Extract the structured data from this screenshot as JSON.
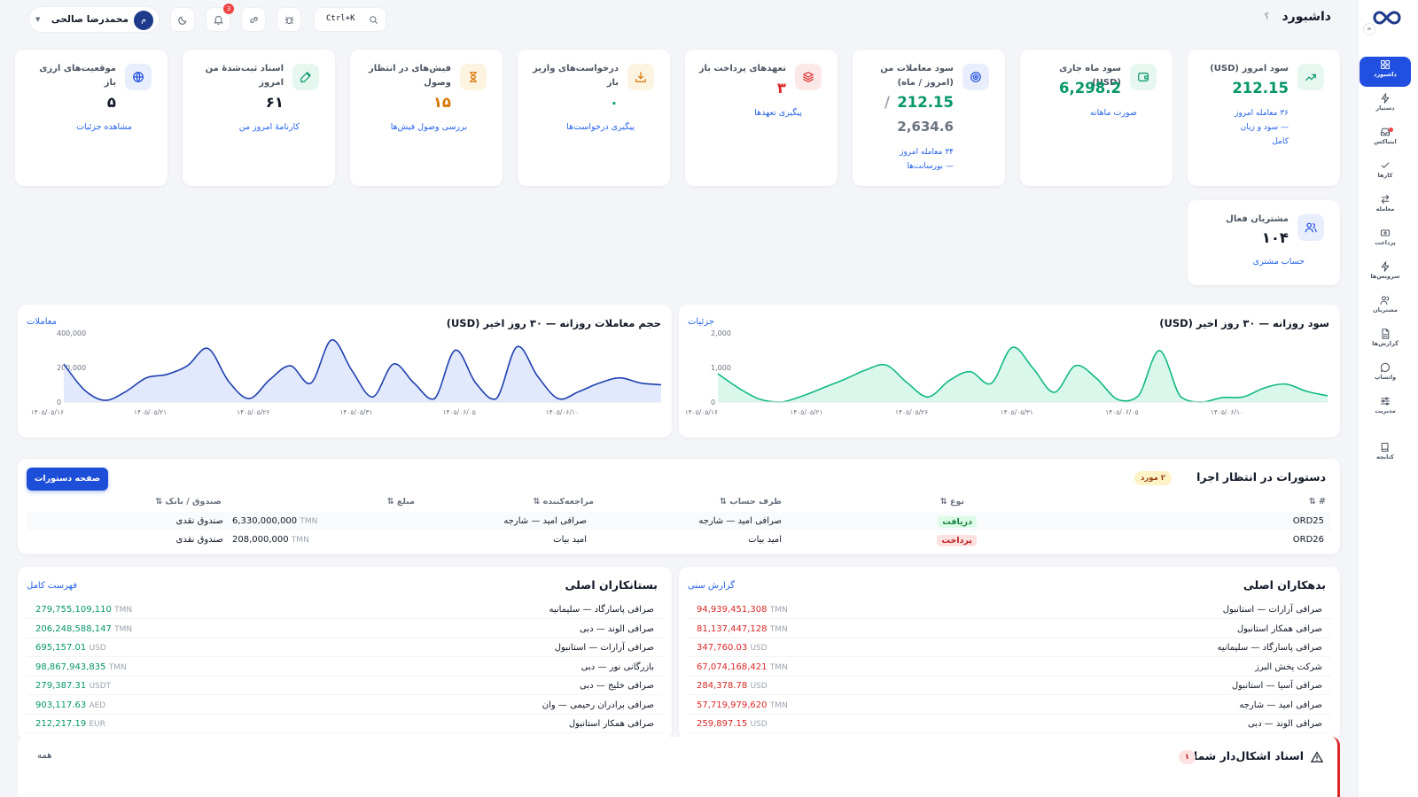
{
  "colors": {
    "accent": "#2150e0",
    "blue_line": "#1e40af",
    "blue_fill": "#dbe4fb",
    "green_line": "#10b981",
    "green_fill": "#d1f5e6",
    "danger": "#dc2626"
  },
  "sidebar": {
    "collapse_icon": "chevrons-icon",
    "items": [
      {
        "label": "داشبورد",
        "icon": "grid-icon",
        "active": true
      },
      {
        "label": "دستیار",
        "icon": "bolt-icon"
      },
      {
        "label": "اینباکس",
        "icon": "inbox-icon",
        "dot": true
      },
      {
        "label": "کارها",
        "icon": "check-icon"
      },
      {
        "label": "معامله",
        "icon": "swap-icon"
      },
      {
        "label": "پرداخت",
        "icon": "card-icon"
      },
      {
        "label": "سرویس‌ها",
        "icon": "flash-icon"
      },
      {
        "label": "مشتریان",
        "icon": "users-icon"
      },
      {
        "label": "گزارش‌ها",
        "icon": "file-icon"
      },
      {
        "label": "واتساپ",
        "icon": "chat-icon"
      },
      {
        "label": "مدیریت",
        "icon": "sliders-icon"
      },
      {
        "label": "کتابچه",
        "icon": "book-icon"
      }
    ]
  },
  "header": {
    "title": "داشبورد",
    "help": "؟",
    "search_shortcut": "Ctrl+K",
    "notifications": "3",
    "user_initial": "م",
    "user_name": "محمدرضا صالحی"
  },
  "kpis": [
    {
      "title": "سود امروز (USD)",
      "value": "212.15",
      "sub": "۳۶ معامله امروز — سود و زیان کامل",
      "icon": "trend-icon"
    },
    {
      "title": "سود ماه جاری (USD)",
      "value": "6,298.2",
      "link": "صورت ماهانه",
      "icon": "wallet-icon"
    },
    {
      "title": "سود معاملات من (امروز / ماه)",
      "value": "212.15",
      "value2": "/",
      "value3": "2,634.6",
      "sub": "۳۴ معامله امروز — بورسانت‌ها",
      "icon": "target-icon"
    },
    {
      "title": "تعهدهای پرداخت باز",
      "value": "۳",
      "link": "پیگیری تعهدها",
      "icon": "layers-icon"
    },
    {
      "title": "درخواست‌های واریز باز",
      "value": "۰",
      "link": "پیگیری درخواست‌ها",
      "icon": "download-icon"
    },
    {
      "title": "فیش‌های در انتظار وصول",
      "value": "۱۵",
      "link": "بررسی وصول فیش‌ها",
      "icon": "hourglass-icon"
    },
    {
      "title": "اسناد ثبت‌شدهٔ من امروز",
      "value": "۶۱",
      "link": "کارنامهٔ امروز من",
      "icon": "pencil-icon"
    },
    {
      "title": "موقعیت‌های ارزی باز",
      "value": "۵",
      "link": "مشاهده جزئیات",
      "icon": "globe-icon"
    }
  ],
  "active_customers": {
    "title": "مشتریان فعال",
    "value": "۱۰۴",
    "link": "حساب مشتری",
    "icon": "users-icon"
  },
  "profit_chart": {
    "title": "سود روزانه — ۳۰ روز اخیر (USD)",
    "link": "جزئیات"
  },
  "volume_chart": {
    "title": "حجم معاملات روزانه — ۳۰ روز اخیر (USD)",
    "link": "معاملات"
  },
  "chart_data": [
    {
      "type": "area",
      "title": "سود روزانه — ۳۰ روز اخیر (USD)",
      "xlabel": "",
      "ylabel": "",
      "ylim": [
        0,
        2000
      ],
      "y_ticks": [
        "2,000",
        "1,000",
        "0"
      ],
      "x_ticks": [
        "۱۴۰۵/۰۵/۱۶",
        "۱۴۰۵/۰۵/۲۱",
        "۱۴۰۵/۰۵/۲۶",
        "۱۴۰۵/۰۵/۳۱",
        "۱۴۰۵/۰۶/۰۵",
        "۱۴۰۵/۰۶/۱۰"
      ],
      "values": [
        820,
        400,
        80,
        0,
        170,
        410,
        650,
        920,
        1070,
        560,
        150,
        620,
        880,
        540,
        1580,
        970,
        280,
        1050,
        690,
        80,
        180,
        1490,
        160,
        0,
        130,
        150,
        410,
        520,
        310,
        180
      ]
    },
    {
      "type": "area",
      "title": "حجم معاملات روزانه — ۳۰ روز اخیر (USD)",
      "xlabel": "",
      "ylabel": "",
      "ylim": [
        0,
        400000
      ],
      "y_ticks": [
        "400,000",
        "200,000",
        "0"
      ],
      "x_ticks": [
        "۱۴۰۵/۰۵/۱۶",
        "۱۴۰۵/۰۵/۲۱",
        "۱۴۰۵/۰۵/۲۶",
        "۱۴۰۵/۰۵/۳۱",
        "۱۴۰۵/۰۶/۰۵",
        "۱۴۰۵/۰۶/۱۰"
      ],
      "values": [
        220000,
        70000,
        10000,
        60000,
        140000,
        160000,
        210000,
        310000,
        120000,
        20000,
        130000,
        210000,
        110000,
        360000,
        180000,
        30000,
        220000,
        110000,
        20000,
        300000,
        110000,
        20000,
        320000,
        150000,
        20000,
        60000,
        110000,
        140000,
        110000,
        100000
      ]
    }
  ],
  "pending": {
    "title": "دستورات در انتظار اجرا",
    "count": "۲ مورد",
    "button": "صفحه دستورات",
    "headers": {
      "id": "# ⇅",
      "type": "نوع ⇅",
      "party": "طرف حساب ⇅",
      "referrer": "مراجعه‌کننده ⇅",
      "amount": "مبلغ ⇅",
      "fund": "صندوق / بانک ⇅"
    },
    "rows": [
      {
        "id": "ORD25",
        "type": "دریافت",
        "kind": "recv",
        "party": "صرافی امید — شارجه",
        "referrer": "صرافی امید — شارجه",
        "amount": "6,330,000,000",
        "currency": "TMN",
        "fund": "صندوق نقدی"
      },
      {
        "id": "ORD26",
        "type": "پرداخت",
        "kind": "pay",
        "party": "امید بیات",
        "referrer": "امید بیات",
        "amount": "208,000,000",
        "currency": "TMN",
        "fund": "صندوق نقدی"
      }
    ]
  },
  "debtors": {
    "title": "بدهکاران اصلی",
    "link": "گزارش سنی",
    "rows": [
      {
        "name": "صرافی آرارات — استانبول",
        "amount": "94,939,451,308",
        "currency": "TMN"
      },
      {
        "name": "صرافی همکار استانبول",
        "amount": "81,137,447,128",
        "currency": "TMN"
      },
      {
        "name": "صرافی پاسارگاد — سلیمانیه",
        "amount": "347,760.03",
        "currency": "USD"
      },
      {
        "name": "شرکت پخش البرز",
        "amount": "67,074,168,421",
        "currency": "TMN"
      },
      {
        "name": "صرافی آسیا — استانبول",
        "amount": "284,378.78",
        "currency": "USD"
      },
      {
        "name": "صرافی امید — شارجه",
        "amount": "57,719,979,620",
        "currency": "TMN"
      },
      {
        "name": "صرافی الوند — دبی",
        "amount": "259,897.15",
        "currency": "USD"
      }
    ]
  },
  "creditors": {
    "title": "بستانکاران اصلی",
    "link": "فهرست کامل",
    "rows": [
      {
        "name": "صرافی پاسارگاد — سلیمانیه",
        "amount": "279,755,109,110",
        "currency": "TMN"
      },
      {
        "name": "صرافی الوند — دبی",
        "amount": "206,248,588,147",
        "currency": "TMN"
      },
      {
        "name": "صرافی آرارات — استانبول",
        "amount": "695,157.01",
        "currency": "USD"
      },
      {
        "name": "بازرگانی نور — دبی",
        "amount": "98,867,943,835",
        "currency": "TMN"
      },
      {
        "name": "صرافی خلیج — دبی",
        "amount": "279,387.31",
        "currency": "USDT"
      },
      {
        "name": "صرافی برادران رحیمی — وان",
        "amount": "903,117.63",
        "currency": "AED"
      },
      {
        "name": "صرافی همکار استانبول",
        "amount": "212,217.19",
        "currency": "EUR"
      }
    ]
  },
  "problem_docs": {
    "title": "اسناد اشکال‌دار شما",
    "count": "۱",
    "link": "همه",
    "icon": "warning-icon"
  }
}
